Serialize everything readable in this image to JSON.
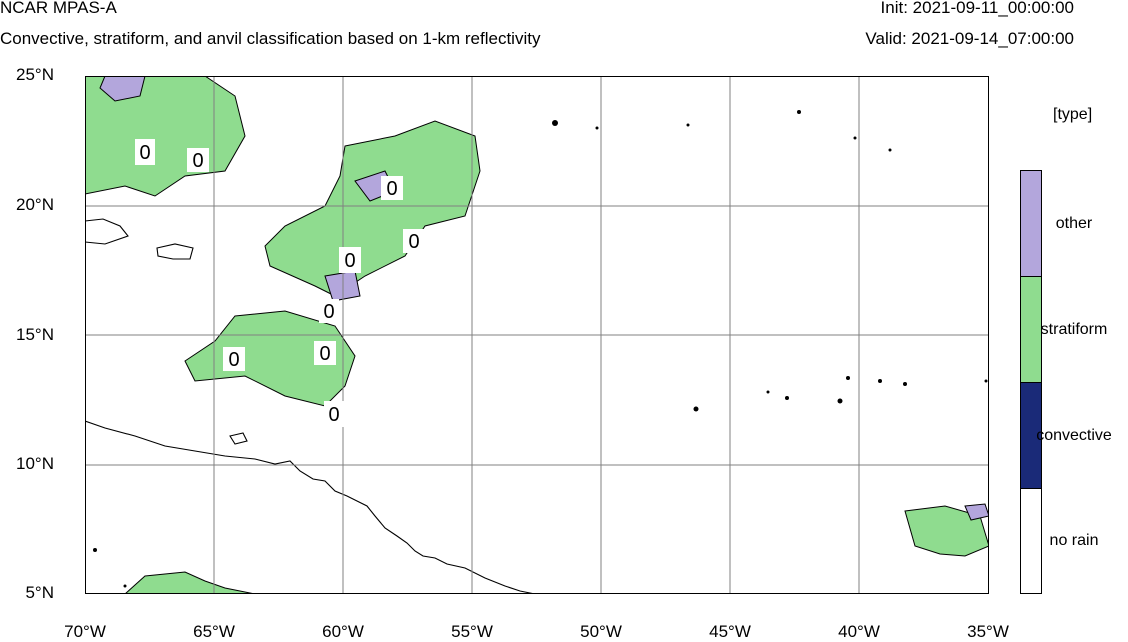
{
  "header": {
    "title": "NCAR MPAS-A",
    "subtitle": "Convective, stratiform, and anvil classification based on 1-km reflectivity",
    "init": "Init: 2021-09-11_00:00:00",
    "valid": "Valid: 2021-09-14_07:00:00"
  },
  "axes": {
    "lat_labels": [
      "25°N",
      "20°N",
      "15°N",
      "10°N",
      "5°N"
    ],
    "lon_labels": [
      "70°W",
      "65°W",
      "60°W",
      "55°W",
      "50°W",
      "45°W",
      "40°W",
      "35°W"
    ],
    "grid": true
  },
  "contour_labels": [
    "0",
    "0",
    "0",
    "0",
    "0",
    "0",
    "0",
    "0",
    "0"
  ],
  "legend": {
    "title": "[type]",
    "categories": [
      {
        "label": "other",
        "color": "#b3a6dc"
      },
      {
        "label": "stratiform",
        "color": "#8fdc8f"
      },
      {
        "label": "convective",
        "color": "#1a2a78"
      },
      {
        "label": "no rain",
        "color": "#ffffff"
      }
    ]
  },
  "colors": {
    "land": "#000000",
    "contour": "#000000",
    "grid": "#808080"
  }
}
